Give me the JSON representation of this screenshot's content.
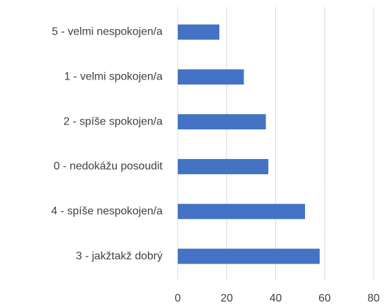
{
  "chart_data": {
    "type": "barh",
    "categories": [
      "5 - velmi nespokojen/a",
      "1 - velmi spokojen/a",
      "2 - spíše spokojen/a",
      "0 - nedokážu posoudit",
      "4 - spíše nespokojen/a",
      "3 - jakžtakž dobrý"
    ],
    "values": [
      17,
      27,
      36,
      37,
      52,
      58
    ],
    "color": "#4472c4",
    "xlim": [
      0,
      80
    ],
    "xticks": [
      0,
      20,
      40,
      60,
      80
    ],
    "grid": true
  }
}
